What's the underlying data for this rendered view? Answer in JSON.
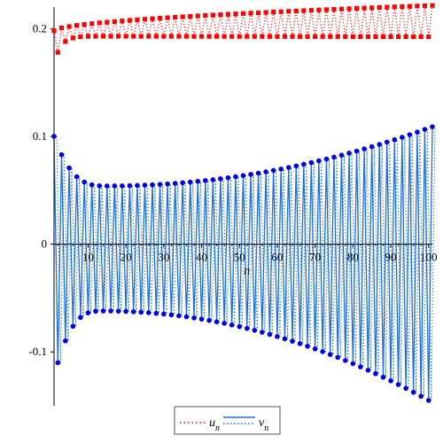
{
  "chart_data": {
    "type": "scatter",
    "title": "",
    "xlabel": "n",
    "ylabel": "",
    "xlim": [
      1,
      101
    ],
    "ylim": [
      -0.15,
      0.22
    ],
    "x_ticks": [
      10,
      20,
      30,
      40,
      50,
      60,
      70,
      80,
      90,
      100
    ],
    "y_ticks": [
      -0.1,
      0,
      0.1,
      0.2
    ],
    "x_tick_labels": [
      "10",
      "20",
      "30",
      "40",
      "50",
      "60",
      "70",
      "80",
      "90",
      "100"
    ],
    "y_tick_labels": [
      "-0.1",
      "0",
      "0.1",
      "0.2"
    ],
    "series": [
      {
        "name": "u_n",
        "legend_main": "u",
        "legend_sub": "n",
        "color": "#ff0000",
        "marker": "square",
        "line_style": "dotted",
        "n_start": 1,
        "n_end": 101,
        "odd_start": 0.198,
        "odd_end": 0.2215,
        "odd_shape": 0.55,
        "even_start": 0.178,
        "even_mid": 0.193,
        "even_end": 0.1925,
        "even_recovery_rate": 0.55
      },
      {
        "name": "v_n",
        "legend_main": "v",
        "legend_sub": "n",
        "color": "#0000e6",
        "line_color": "#1f6fd6",
        "marker": "circle",
        "line_style": "solid",
        "n_start": 1,
        "n_end": 101,
        "odd_first": 0.1,
        "odd_min": 0.054,
        "odd_min_n": 15,
        "odd_end": 0.109,
        "even_first": -0.11,
        "even_max": -0.062,
        "even_max_n": 14,
        "even_end": -0.145
      }
    ],
    "grid": false,
    "legend_position": "bottom-center"
  }
}
